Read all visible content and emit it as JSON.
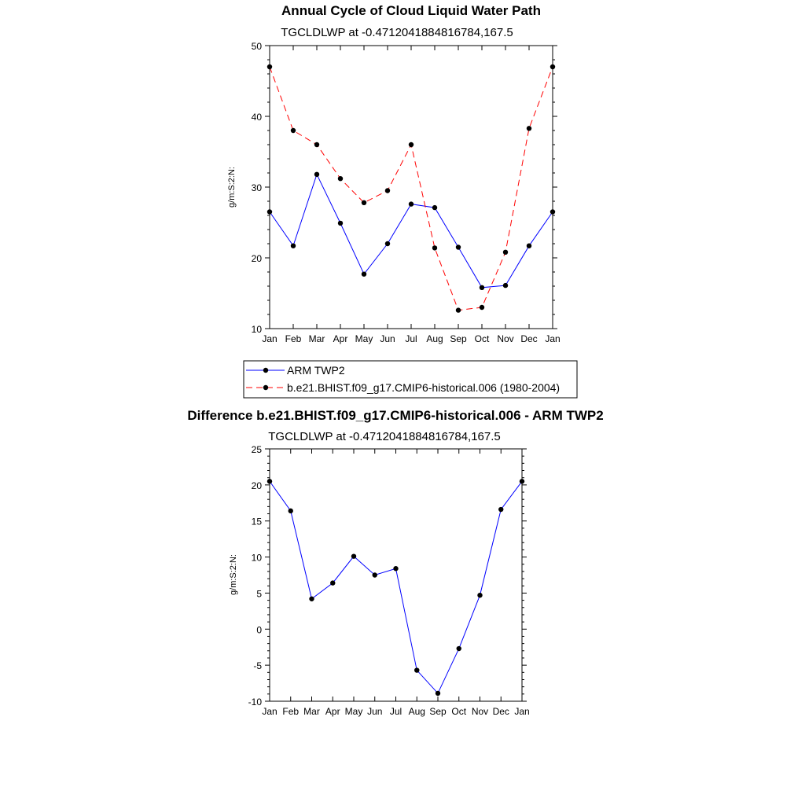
{
  "chart_data": [
    {
      "type": "line",
      "title": "Annual Cycle of Cloud Liquid Water Path",
      "subtitle": "TGCLDLWP at -0.4712041884816784,167.5",
      "ylabel": "g/m:S:2:N:",
      "xlabel": "",
      "ylim": [
        10,
        50
      ],
      "yticks": [
        "10",
        "20",
        "30",
        "40",
        "50"
      ],
      "ytick_values": [
        10,
        20,
        30,
        40,
        50
      ],
      "categories": [
        "Jan",
        "Feb",
        "Mar",
        "Apr",
        "May",
        "Jun",
        "Jul",
        "Aug",
        "Sep",
        "Oct",
        "Nov",
        "Dec",
        "Jan"
      ],
      "series": [
        {
          "name": "ARM TWP2",
          "color": "#0000ff",
          "dashed": false,
          "values": [
            26.5,
            21.7,
            31.8,
            24.9,
            17.7,
            22.0,
            27.6,
            27.1,
            21.5,
            15.8,
            16.1,
            21.7,
            26.5
          ]
        },
        {
          "name": "b.e21.BHIST.f09_g17.CMIP6-historical.006 (1980-2004)",
          "color": "#ff0000",
          "dashed": true,
          "values": [
            47.0,
            38.0,
            36.0,
            31.2,
            27.8,
            29.5,
            36.0,
            21.4,
            12.6,
            13.0,
            20.8,
            38.3,
            47.0
          ]
        }
      ],
      "legend": "below"
    },
    {
      "type": "line",
      "title": "Difference b.e21.BHIST.f09_g17.CMIP6-historical.006 - ARM TWP2",
      "subtitle": "TGCLDLWP at -0.4712041884816784,167.5",
      "ylabel": "g/m:S:2:N:",
      "xlabel": "",
      "ylim": [
        -10,
        25
      ],
      "yticks": [
        "-10",
        "-5",
        "0",
        "5",
        "10",
        "15",
        "20",
        "25"
      ],
      "ytick_values": [
        -10,
        -5,
        0,
        5,
        10,
        15,
        20,
        25
      ],
      "categories": [
        "Jan",
        "Feb",
        "Mar",
        "Apr",
        "May",
        "Jun",
        "Jul",
        "Aug",
        "Sep",
        "Oct",
        "Nov",
        "Dec",
        "Jan"
      ],
      "series": [
        {
          "name": "Difference",
          "color": "#0000ff",
          "dashed": false,
          "values": [
            20.5,
            16.4,
            4.2,
            6.4,
            10.1,
            7.5,
            8.4,
            -5.7,
            -8.9,
            -2.7,
            4.7,
            16.6,
            20.5
          ]
        }
      ]
    }
  ]
}
